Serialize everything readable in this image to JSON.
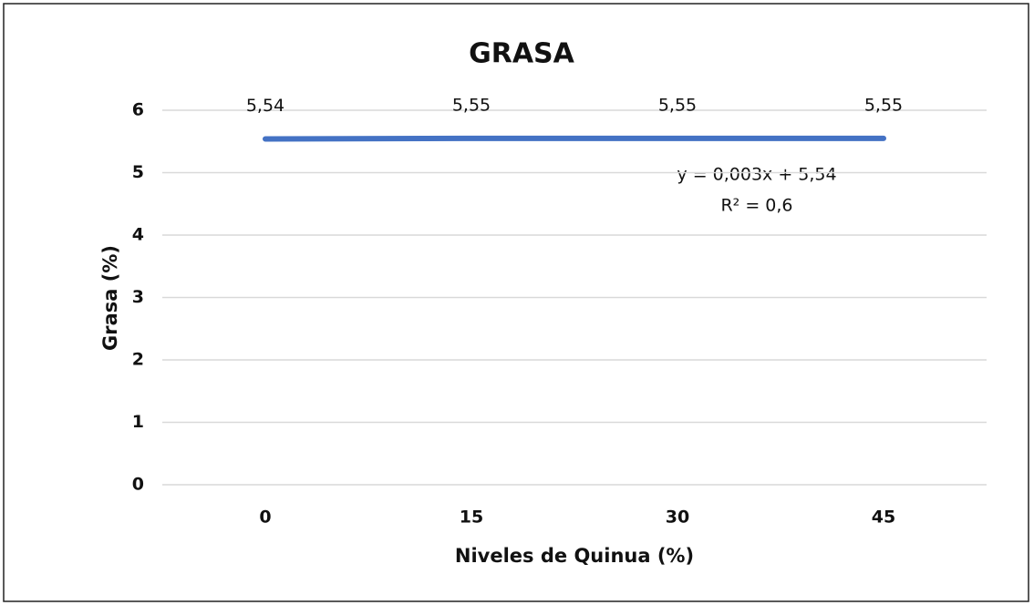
{
  "chart_data": {
    "type": "line",
    "title": "GRASA",
    "x_label": "Niveles de Quinua (%)",
    "y_label": "Grasa (%)",
    "categories": [
      "0",
      "15",
      "30",
      "45"
    ],
    "series": [
      {
        "name": "Grasa",
        "color": "#4472c4",
        "values": [
          5.54,
          5.55,
          5.55,
          5.55
        ],
        "value_labels": [
          "5,54",
          "5,55",
          "5,55",
          "5,55"
        ]
      }
    ],
    "ylim": [
      0,
      6
    ],
    "yticks": [
      0,
      1,
      2,
      3,
      4,
      5,
      6
    ],
    "grid": true,
    "annotations": [
      "y = 0,003x + 5,54",
      "R² = 0,6"
    ]
  }
}
